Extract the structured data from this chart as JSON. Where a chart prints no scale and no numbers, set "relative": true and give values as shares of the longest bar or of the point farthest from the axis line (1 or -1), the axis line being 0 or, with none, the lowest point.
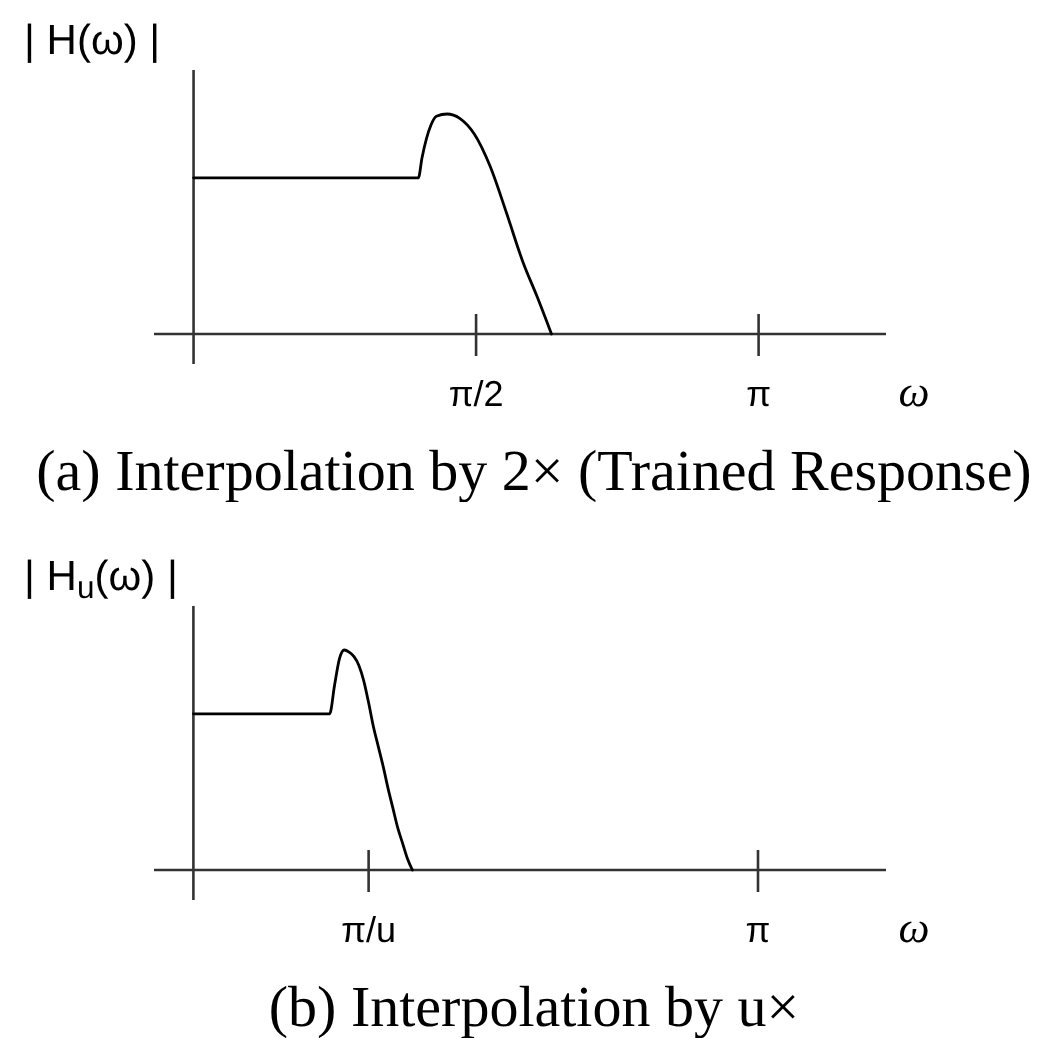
{
  "chart_data": [
    {
      "type": "line",
      "title": "(a) Interpolation by 2× (Trained Response)",
      "ylabel": "| H(ω) |",
      "xlabel": "ω",
      "relative": true,
      "color": "#000000",
      "x": [
        0,
        1.25,
        1.27,
        1.32,
        1.35,
        1.41,
        1.48,
        1.56,
        1.65,
        1.74,
        1.83,
        1.91,
        1.99
      ],
      "values": [
        0.71,
        0.71,
        0.8,
        0.95,
        0.99,
        1,
        0.98,
        0.91,
        0.76,
        0.55,
        0.33,
        0.17,
        0
      ],
      "xlim": [
        -0.22,
        3.85
      ],
      "xticks": [
        {
          "value": 1.5708,
          "label": "π/2"
        },
        {
          "value": 3.1416,
          "label": "π"
        }
      ]
    },
    {
      "type": "line",
      "title": "(b) Interpolation by u×",
      "ylabel": "| H$_{u}$(ω) |",
      "xlabel": "ω",
      "relative": true,
      "color": "#000000",
      "categories": [
        null,
        null,
        null,
        null,
        null,
        null,
        null,
        null,
        null,
        null,
        null,
        null,
        null,
        null,
        null,
        null,
        null,
        null,
        null,
        null,
        null,
        null,
        null,
        null,
        null,
        null,
        null,
        null,
        null,
        null,
        null,
        null,
        null,
        null,
        null,
        null,
        "π/u",
        null,
        null,
        null,
        null,
        null,
        null,
        null,
        null,
        null,
        null,
        null,
        null,
        null,
        null,
        null,
        null,
        null,
        null,
        null,
        null,
        null,
        null,
        null,
        null,
        null,
        null,
        null,
        null,
        null,
        null,
        null,
        null,
        null,
        null,
        null,
        null,
        null,
        null,
        null,
        null,
        null,
        null,
        null,
        null,
        null,
        null,
        null,
        null,
        null,
        null,
        null,
        null,
        null,
        null,
        null,
        null,
        null,
        null,
        null,
        null,
        null,
        null,
        null,
        null,
        null,
        null,
        null,
        null,
        null,
        null,
        null,
        null,
        null,
        null,
        null,
        null,
        null,
        null,
        null,
        "π"
      ],
      "values": [
        0.71,
        0.71,
        0.71,
        0.71,
        0.71,
        0.71,
        0.71,
        0.71,
        0.71,
        0.71,
        0.71,
        0.71,
        0.71,
        0.71,
        0.71,
        0.71,
        0.71,
        0.71,
        0.71,
        0.71,
        0.71,
        0.71,
        0.71,
        0.71,
        0.71,
        0.71,
        0.71,
        0.71,
        0.71,
        0.84,
        0.96,
        1,
        0.99,
        0.97,
        0.93,
        0.86,
        0.76,
        0.65,
        0.56,
        0.47,
        0.37,
        0.28,
        0.19,
        0.12,
        0.05,
        0,
        null,
        null,
        null,
        null,
        null,
        null,
        null,
        null,
        null,
        null,
        null,
        null,
        null,
        null,
        null,
        null,
        null,
        null,
        null,
        null,
        null,
        null,
        null,
        null,
        null,
        null,
        null,
        null,
        null,
        null,
        null,
        null,
        null,
        null,
        null,
        null,
        null,
        null,
        null,
        null,
        null,
        null,
        null,
        null,
        null,
        null,
        null,
        null,
        null,
        null,
        null,
        null,
        null,
        null,
        null,
        null,
        null,
        null,
        null,
        null,
        null,
        null,
        null,
        null,
        null,
        null,
        null,
        null,
        null,
        null,
        null
      ]
    }
  ]
}
